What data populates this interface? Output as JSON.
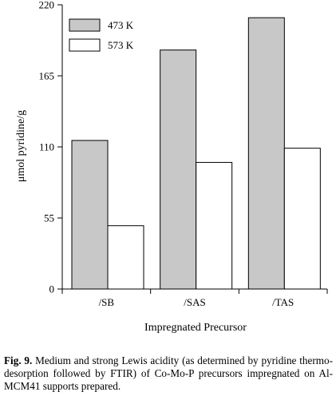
{
  "chart_data": {
    "type": "bar",
    "categories": [
      "/SB",
      "/SAS",
      "/TAS"
    ],
    "series": [
      {
        "name": "473 K",
        "values": [
          115,
          185,
          210
        ],
        "color": "#c8c8c8"
      },
      {
        "name": "573 K",
        "values": [
          49,
          98,
          109
        ],
        "color": "#ffffff"
      }
    ],
    "xlabel": "Impregnated Precursor",
    "ylabel": "μmol pyridine/g",
    "ylim": [
      0,
      220
    ],
    "yticks": [
      0,
      55,
      110,
      165,
      220
    ],
    "grid": false,
    "legend_position": "top-left"
  },
  "caption": {
    "label": "Fig. 9.",
    "text": "Medium and strong Lewis acidity (as determined by pyridine thermo-desorption followed by FTIR) of Co-Mo-P precursors impregnated on Al-MCM41 supports prepared."
  }
}
